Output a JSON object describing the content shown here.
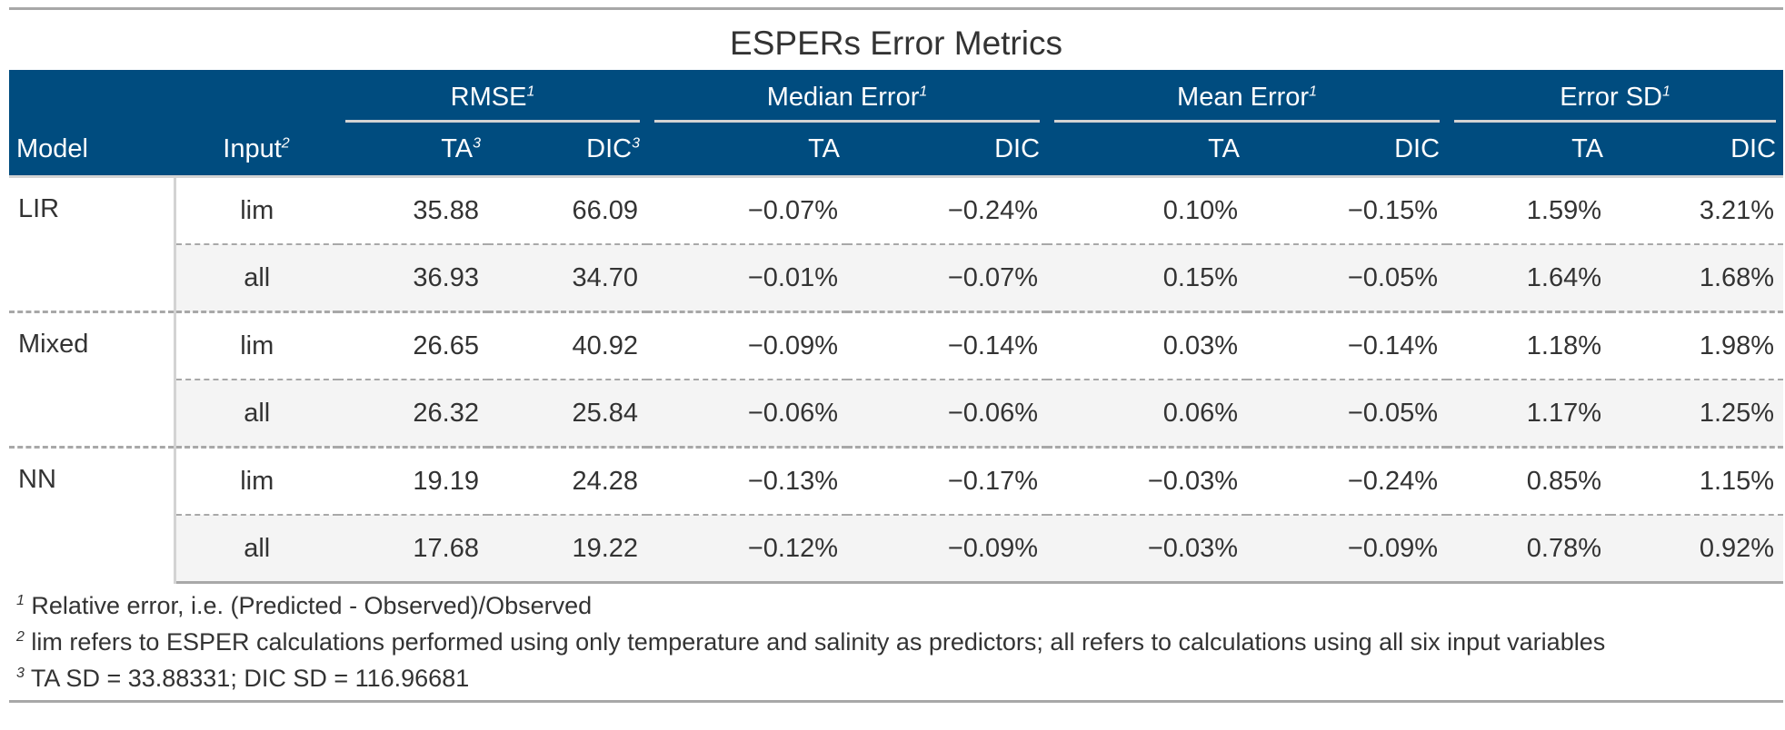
{
  "title": "ESPERs Error Metrics",
  "header": {
    "spanners": [
      {
        "label": "RMSE",
        "note": "1"
      },
      {
        "label": "Median Error",
        "note": "1"
      },
      {
        "label": "Mean Error",
        "note": "1"
      },
      {
        "label": "Error SD",
        "note": "1"
      }
    ],
    "model": "Model",
    "input": "Input",
    "input_note": "2",
    "ta": "TA",
    "dic": "DIC",
    "rmse_note": "3"
  },
  "rows": [
    {
      "model": "LIR",
      "input": "lim",
      "values": [
        "35.88",
        "66.09",
        "−0.07%",
        "−0.24%",
        "0.10%",
        "−0.15%",
        "1.59%",
        "3.21%"
      ]
    },
    {
      "model": "",
      "input": "all",
      "values": [
        "36.93",
        "34.70",
        "−0.01%",
        "−0.07%",
        "0.15%",
        "−0.05%",
        "1.64%",
        "1.68%"
      ]
    },
    {
      "model": "Mixed",
      "input": "lim",
      "values": [
        "26.65",
        "40.92",
        "−0.09%",
        "−0.14%",
        "0.03%",
        "−0.14%",
        "1.18%",
        "1.98%"
      ]
    },
    {
      "model": "",
      "input": "all",
      "values": [
        "26.32",
        "25.84",
        "−0.06%",
        "−0.06%",
        "0.06%",
        "−0.05%",
        "1.17%",
        "1.25%"
      ]
    },
    {
      "model": "NN",
      "input": "lim",
      "values": [
        "19.19",
        "24.28",
        "−0.13%",
        "−0.17%",
        "−0.03%",
        "−0.24%",
        "0.85%",
        "1.15%"
      ]
    },
    {
      "model": "",
      "input": "all",
      "values": [
        "17.68",
        "19.22",
        "−0.12%",
        "−0.09%",
        "−0.03%",
        "−0.09%",
        "0.78%",
        "0.92%"
      ]
    }
  ],
  "footnotes": [
    {
      "mark": "1",
      "text": "Relative error, i.e. (Predicted - Observed)/Observed"
    },
    {
      "mark": "2",
      "text": "lim refers to ESPER calculations performed using only temperature and salinity as predictors; all refers to calculations using all six input variables"
    },
    {
      "mark": "3",
      "text": "TA SD = 33.88331; DIC SD = 116.96681"
    }
  ],
  "colors": {
    "header_bg": "#004c7f",
    "header_text": "#ffffff",
    "stripe": "#f4f4f4"
  }
}
